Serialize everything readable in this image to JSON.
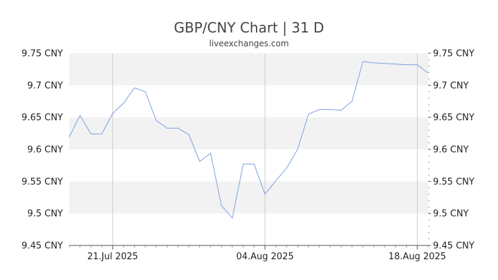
{
  "chart_data": {
    "type": "line",
    "title": "GBP/CNY Chart | 31 D",
    "subtitle": "liveexchanges.com",
    "xlabel": "",
    "ylabel": "",
    "ylim": [
      9.45,
      9.75
    ],
    "y_ticks": [
      "9.75 CNY",
      "9.7 CNY",
      "9.65 CNY",
      "9.6 CNY",
      "9.55 CNY",
      "9.5 CNY",
      "9.45 CNY"
    ],
    "y_tick_values": [
      9.75,
      9.7,
      9.65,
      9.6,
      9.55,
      9.5,
      9.45
    ],
    "x_range": [
      "2025-07-17",
      "2025-08-19"
    ],
    "x_ticks": [
      "21.Jul 2025",
      "04.Aug 2025",
      "18.Aug 2025"
    ],
    "x_tick_dates": [
      "2025-07-21",
      "2025-08-04",
      "2025-08-18"
    ],
    "grid": "alternating horizontal bands, vertical lines at x ticks",
    "legend": "none",
    "colors": {
      "line": "#7B9FE0",
      "band": "#F2F2F2",
      "grid": "#CCCCCC",
      "axis": "#555555"
    },
    "series": [
      {
        "x": [
          "2025-07-17",
          "2025-07-18",
          "2025-07-19",
          "2025-07-20",
          "2025-07-21",
          "2025-07-22",
          "2025-07-23",
          "2025-07-24",
          "2025-07-25",
          "2025-07-26",
          "2025-07-27",
          "2025-07-28",
          "2025-07-29",
          "2025-07-30",
          "2025-07-31",
          "2025-08-01",
          "2025-08-02",
          "2025-08-03",
          "2025-08-04",
          "2025-08-05",
          "2025-08-06",
          "2025-08-07",
          "2025-08-08",
          "2025-08-09",
          "2025-08-10",
          "2025-08-11",
          "2025-08-12",
          "2025-08-13",
          "2025-08-14",
          "2025-08-17",
          "2025-08-18",
          "2025-08-19"
        ],
        "y": [
          9.619,
          9.653,
          9.624,
          9.624,
          9.656,
          9.672,
          9.696,
          9.69,
          9.645,
          9.633,
          9.633,
          9.623,
          9.581,
          9.594,
          9.512,
          9.493,
          9.577,
          9.577,
          9.53,
          9.551,
          9.571,
          9.6,
          9.655,
          9.662,
          9.662,
          9.661,
          9.675,
          9.737,
          9.735,
          9.732,
          9.732,
          9.719
        ]
      }
    ]
  }
}
